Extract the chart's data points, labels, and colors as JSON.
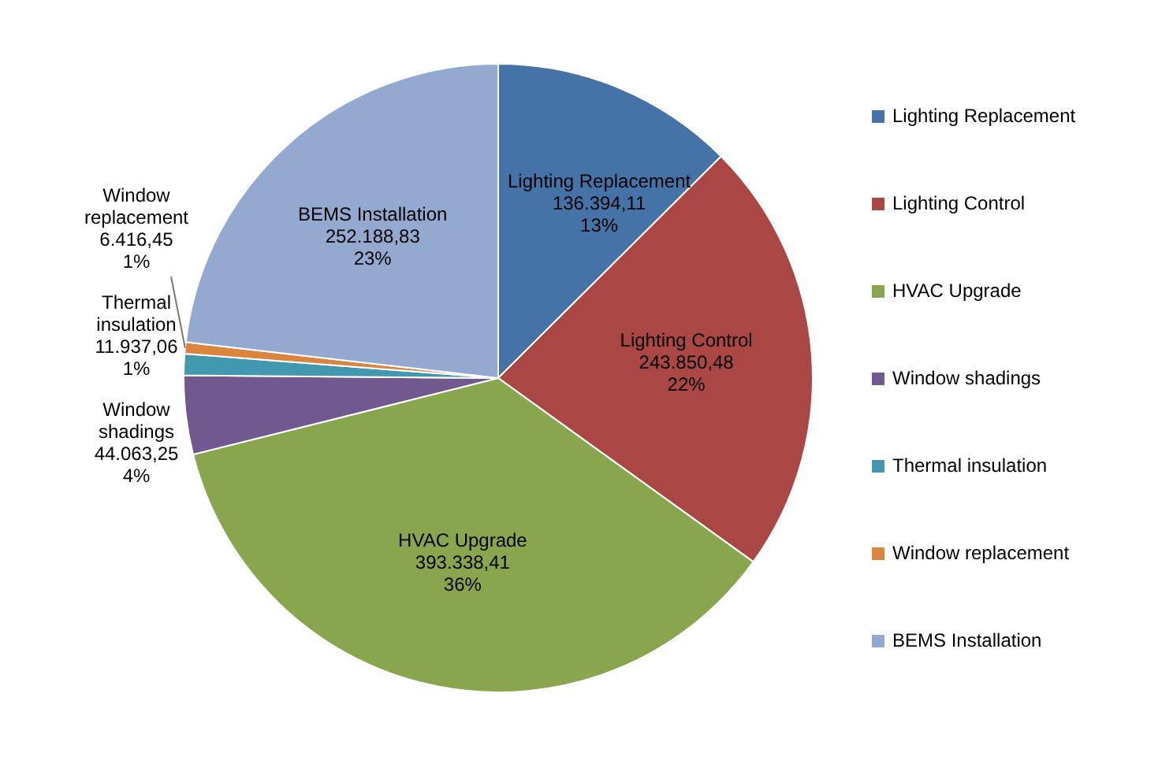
{
  "chart_data": {
    "type": "pie",
    "categories": [
      "Lighting Replacement",
      "Lighting Control",
      "HVAC Upgrade",
      "Window shadings",
      "Thermal insulation",
      "Window replacement",
      "BEMS Installation"
    ],
    "values": [
      136394.11,
      243850.48,
      393338.41,
      44063.25,
      11937.06,
      6416.45,
      252188.83
    ],
    "value_labels": [
      "136.394,11\n13%",
      "243.850,48\n22%",
      "393.338,41\n36%",
      "44.063,25\n4%",
      "11.937,06\n1%",
      "6.416,45\n1%",
      "252.188,83\n23%"
    ],
    "colors": [
      "#4572a7",
      "#aa4643",
      "#89a54e",
      "#71588f",
      "#4198af",
      "#db843d",
      "#93a9cf"
    ],
    "legend": "right"
  }
}
